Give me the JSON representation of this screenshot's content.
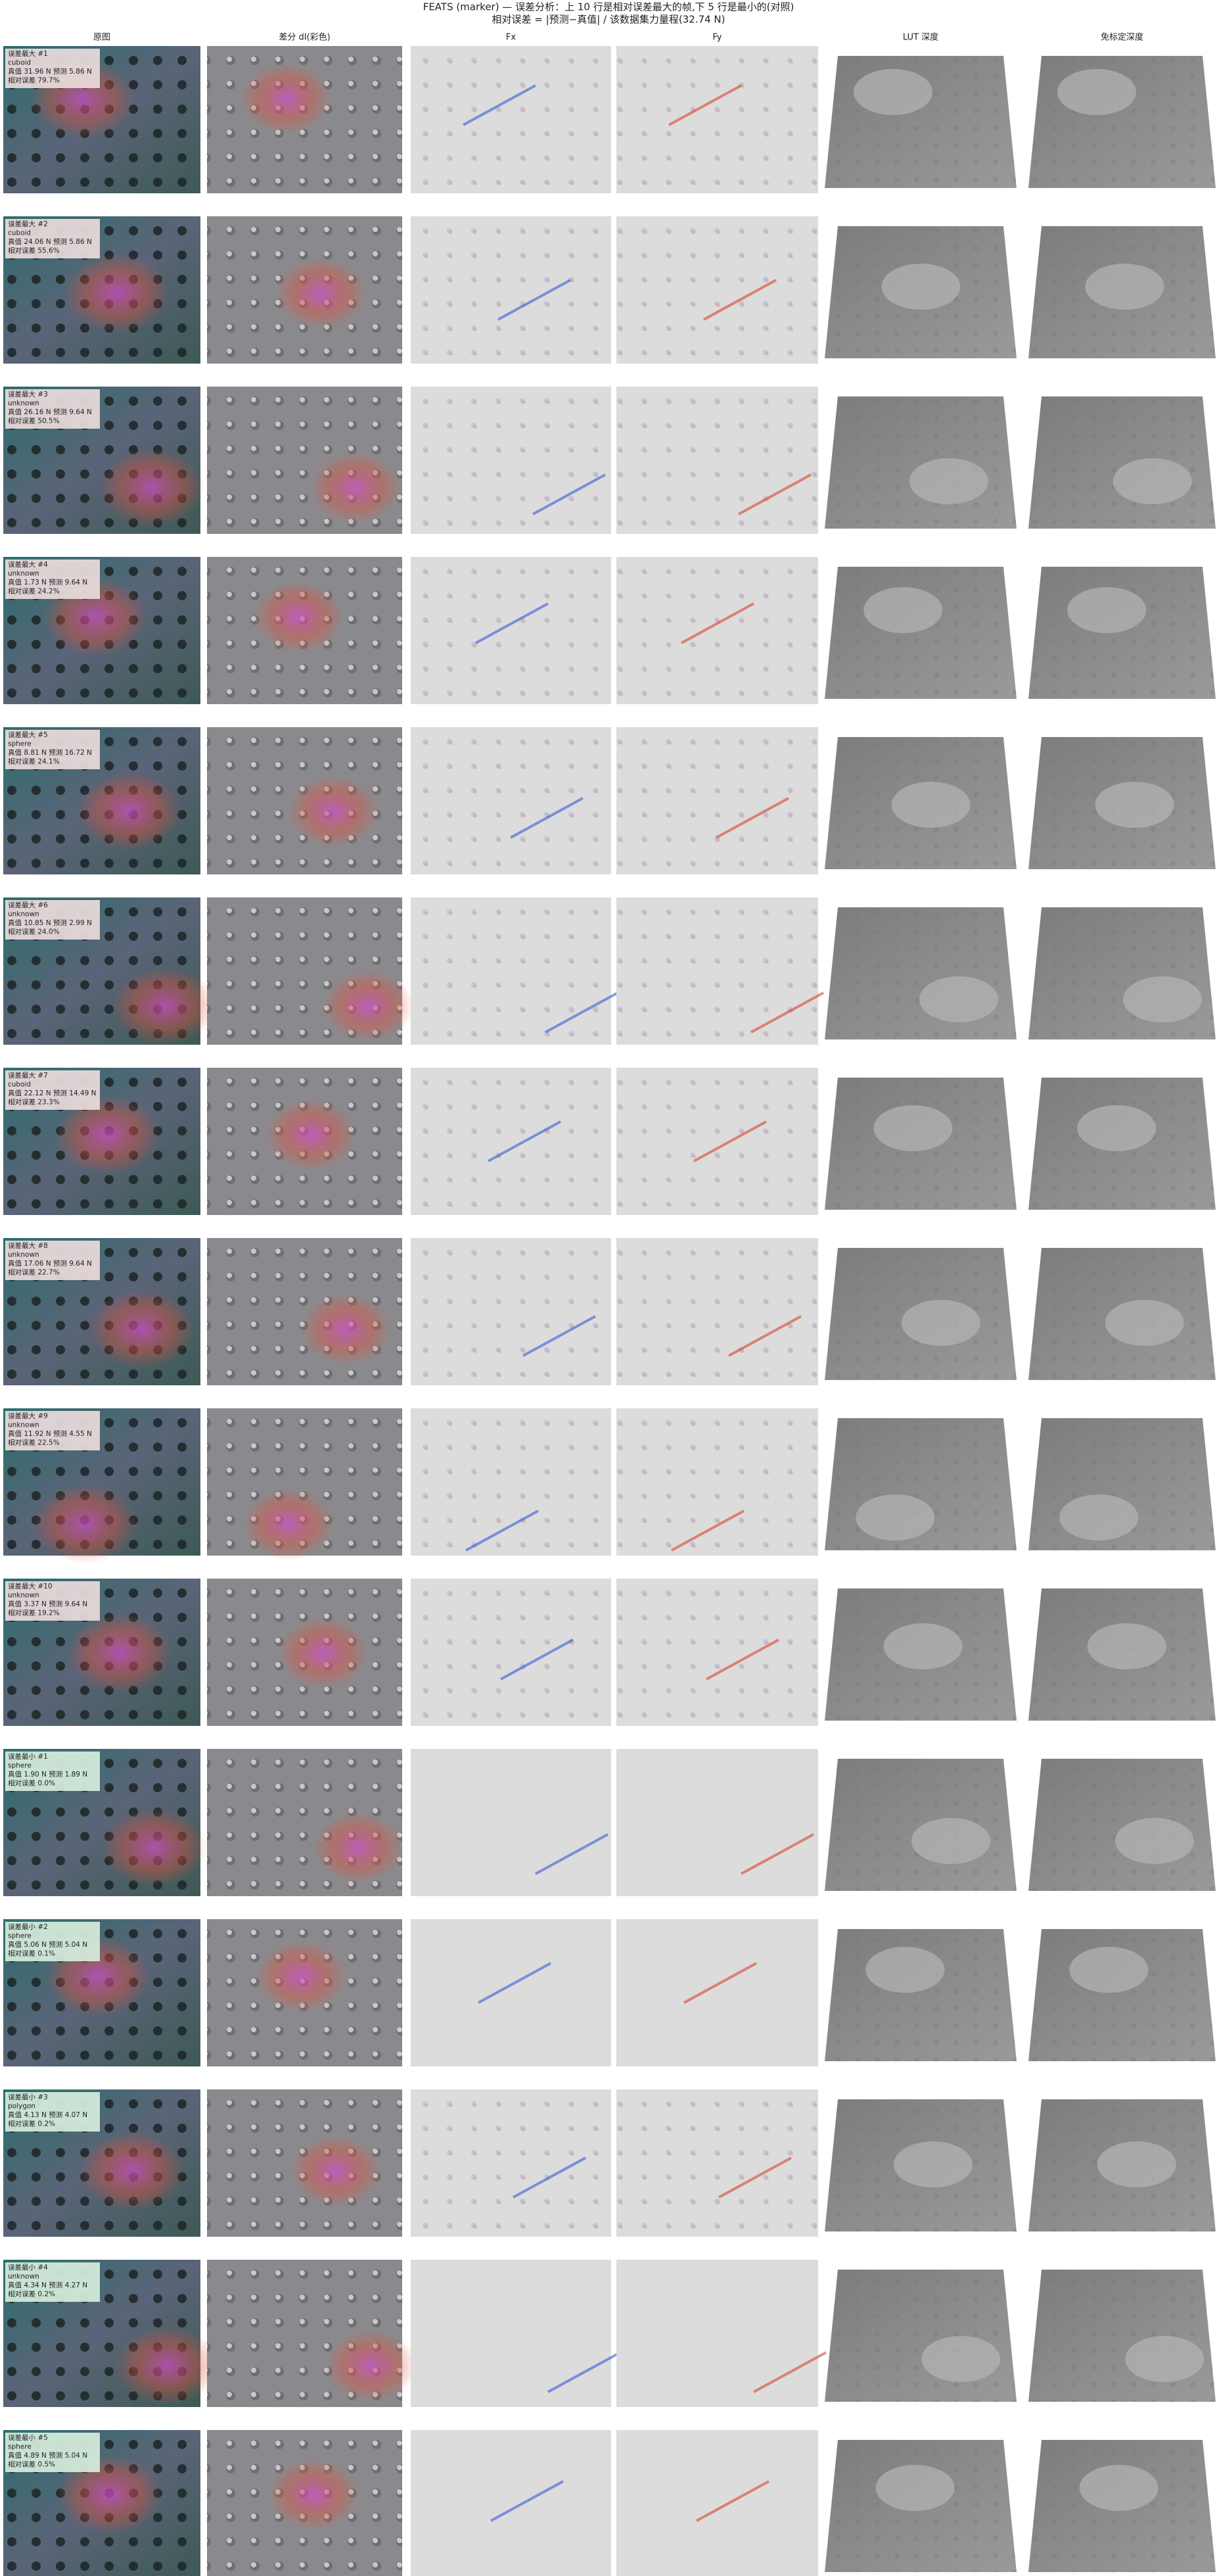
{
  "header": {
    "title": "FEATS (marker) — 误差分析：上 10 行是相对误差最大的帧,下 5 行是最小的(对照)",
    "subtitle": "相对误差 = |预测−真值| / 该数据集力量程(32.74 N)"
  },
  "columns": [
    "原图",
    "差分 dI(彩色)",
    "Fx",
    "Fy",
    "LUT 深度",
    "免标定深度"
  ],
  "rows": [
    {
      "label": "误差最大 #1",
      "shape": "cuboid",
      "values": "真值 31.96 N  预测 5.86 N",
      "error": "相对误差 79.7%"
    },
    {
      "label": "误差最大 #2",
      "shape": "cuboid",
      "values": "真值 24.06 N  预测 5.86 N",
      "error": "相对误差 55.6%"
    },
    {
      "label": "误差最大 #3",
      "shape": "unknown",
      "values": "真值 26.16 N  预测 9.64 N",
      "error": "相对误差 50.5%"
    },
    {
      "label": "误差最大 #4",
      "shape": "unknown",
      "values": "真值 1.73 N  预测 9.64 N",
      "error": "相对误差 24.2%"
    },
    {
      "label": "误差最大 #5",
      "shape": "sphere",
      "values": "真值 8.81 N  预测 16.72 N",
      "error": "相对误差 24.1%"
    },
    {
      "label": "误差最大 #6",
      "shape": "unknown",
      "values": "真值 10.85 N  预测 2.99 N",
      "error": "相对误差 24.0%"
    },
    {
      "label": "误差最大 #7",
      "shape": "cuboid",
      "values": "真值 22.12 N  预测 14.49 N",
      "error": "相对误差 23.3%"
    },
    {
      "label": "误差最大 #8",
      "shape": "unknown",
      "values": "真值 17.06 N  预测 9.64 N",
      "error": "相对误差 22.7%"
    },
    {
      "label": "误差最大 #9",
      "shape": "unknown",
      "values": "真值 11.92 N  预测 4.55 N",
      "error": "相对误差 22.5%"
    },
    {
      "label": "误差最大 #10",
      "shape": "unknown",
      "values": "真值 3.37 N  预测 9.64 N",
      "error": "相对误差 19.2%"
    },
    {
      "label": "误差最小 #1",
      "shape": "sphere",
      "values": "真值 1.90 N  预测 1.89 N",
      "error": "相对误差 0.0%"
    },
    {
      "label": "误差最小 #2",
      "shape": "sphere",
      "values": "真值 5.06 N  预测 5.04 N",
      "error": "相对误差 0.1%"
    },
    {
      "label": "误差最小 #3",
      "shape": "polygon",
      "values": "真值 4.13 N  预测 4.07 N",
      "error": "相对误差 0.2%"
    },
    {
      "label": "误差最小 #4",
      "shape": "unknown",
      "values": "真值 4.34 N  预测 4.27 N",
      "error": "相对误差 0.2%"
    },
    {
      "label": "误差最小 #5",
      "shape": "sphere",
      "values": "真值 4.89 N  预测 5.04 N",
      "error": "相对误差 0.5%"
    }
  ]
}
